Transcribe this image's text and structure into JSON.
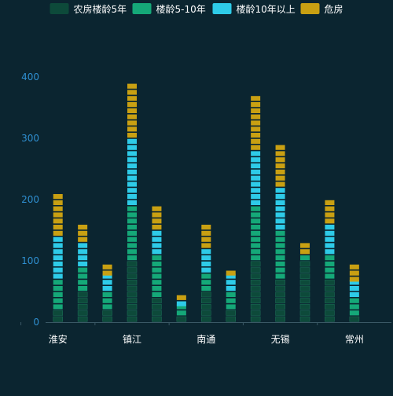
{
  "chart_data": {
    "type": "bar",
    "stacked": true,
    "bar_style": "pictorial-blocks",
    "legend_position": "top-center",
    "grid": false,
    "categories": [
      "淮安",
      "",
      "",
      "镇江",
      "",
      "",
      "南通",
      "",
      "",
      "无锡",
      "",
      "",
      "常州",
      ""
    ],
    "visible_tick_labels": [
      "淮安",
      "镇江",
      "南通",
      "无锡",
      "常州"
    ],
    "ylim": [
      0,
      400
    ],
    "yticks": [
      0,
      100,
      200,
      300,
      400
    ],
    "series": [
      {
        "name": "农房楼龄5年",
        "color": "#0d4a3a",
        "values": [
          20,
          50,
          20,
          100,
          40,
          10,
          50,
          20,
          100,
          70,
          100,
          70,
          10,
          0
        ]
      },
      {
        "name": "楼龄5-10年",
        "color": "#15a878",
        "values": [
          50,
          40,
          30,
          90,
          70,
          15,
          30,
          30,
          90,
          80,
          10,
          40,
          30,
          0
        ]
      },
      {
        "name": "楼龄10年以上",
        "color": "#2ecbe8",
        "values": [
          70,
          40,
          25,
          110,
          40,
          10,
          40,
          25,
          90,
          70,
          0,
          50,
          25,
          0
        ]
      },
      {
        "name": "危房",
        "color": "#c9a012",
        "values": [
          65,
          30,
          20,
          85,
          35,
          10,
          35,
          10,
          90,
          70,
          15,
          40,
          25,
          0
        ]
      }
    ]
  }
}
